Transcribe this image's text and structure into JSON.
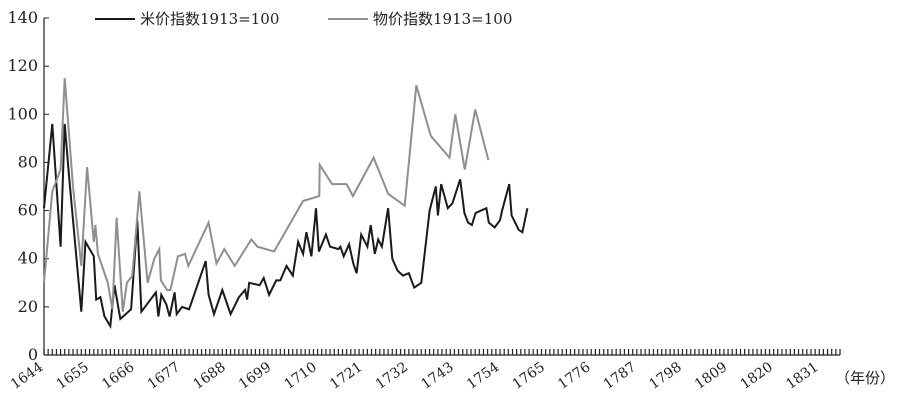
{
  "chart_data": {
    "type": "line",
    "xlabel": "（年份）",
    "ylim": [
      0,
      140
    ],
    "yticks": [
      0,
      20,
      40,
      60,
      80,
      100,
      120,
      140
    ],
    "xlim": [
      1644,
      1836
    ],
    "xticks": [
      1644,
      1655,
      1666,
      1677,
      1688,
      1699,
      1710,
      1721,
      1732,
      1743,
      1754,
      1765,
      1776,
      1787,
      1798,
      1809,
      1820,
      1831
    ],
    "legend_position": "top-left",
    "grid": false,
    "series": [
      {
        "name": "米价指数1913=100",
        "color": "#1a1a1a",
        "points": [
          [
            1644,
            61
          ],
          [
            1646,
            96
          ],
          [
            1648,
            45
          ],
          [
            1649,
            96
          ],
          [
            1650,
            75
          ],
          [
            1653,
            18
          ],
          [
            1654,
            47
          ],
          [
            1656,
            41
          ],
          [
            1656.6,
            23
          ],
          [
            1657.6,
            24
          ],
          [
            1658.6,
            16
          ],
          [
            1660,
            12
          ],
          [
            1661,
            29
          ],
          [
            1662.4,
            15
          ],
          [
            1665,
            19
          ],
          [
            1666.5,
            56
          ],
          [
            1667.5,
            18
          ],
          [
            1671,
            26
          ],
          [
            1671.6,
            16
          ],
          [
            1672.3,
            25
          ],
          [
            1673.5,
            21
          ],
          [
            1674.3,
            16
          ],
          [
            1675.5,
            26
          ],
          [
            1676,
            17
          ],
          [
            1677.3,
            20
          ],
          [
            1679,
            19
          ],
          [
            1683,
            39
          ],
          [
            1683.7,
            25
          ],
          [
            1685,
            17
          ],
          [
            1687,
            27
          ],
          [
            1689,
            17
          ],
          [
            1691,
            24
          ],
          [
            1692.5,
            27
          ],
          [
            1693,
            23
          ],
          [
            1693.5,
            30
          ],
          [
            1696,
            29
          ],
          [
            1697,
            32
          ],
          [
            1698.3,
            25
          ],
          [
            1700,
            31
          ],
          [
            1701,
            31
          ],
          [
            1702.5,
            37
          ],
          [
            1704,
            33
          ],
          [
            1705.3,
            47
          ],
          [
            1706.5,
            42
          ],
          [
            1707.3,
            51
          ],
          [
            1708.5,
            41
          ],
          [
            1709.6,
            61
          ],
          [
            1710.3,
            43
          ],
          [
            1712,
            50
          ],
          [
            1713,
            45
          ],
          [
            1715,
            44
          ],
          [
            1715.5,
            45
          ],
          [
            1716.3,
            41
          ],
          [
            1717.6,
            46
          ],
          [
            1718.6,
            38
          ],
          [
            1719.4,
            34
          ],
          [
            1720.5,
            50
          ],
          [
            1722,
            45
          ],
          [
            1722.8,
            54
          ],
          [
            1723.8,
            42
          ],
          [
            1724.6,
            48
          ],
          [
            1725.5,
            45
          ],
          [
            1727,
            61
          ],
          [
            1728,
            40
          ],
          [
            1729.3,
            35
          ],
          [
            1730.6,
            33
          ],
          [
            1732,
            34
          ],
          [
            1733.3,
            28
          ],
          [
            1735,
            30
          ],
          [
            1737,
            60
          ],
          [
            1738.5,
            70
          ],
          [
            1739,
            58
          ],
          [
            1739.8,
            71
          ],
          [
            1741.4,
            61
          ],
          [
            1742.5,
            63
          ],
          [
            1744.4,
            73
          ],
          [
            1745.4,
            59
          ],
          [
            1746.3,
            55
          ],
          [
            1747.2,
            54
          ],
          [
            1748.1,
            59
          ],
          [
            1750.7,
            61
          ],
          [
            1751.3,
            55
          ],
          [
            1752.7,
            53
          ],
          [
            1754,
            56
          ],
          [
            1754.5,
            60
          ],
          [
            1756.2,
            71
          ],
          [
            1756.8,
            58
          ],
          [
            1758.5,
            52
          ],
          [
            1759.4,
            51
          ],
          [
            1760.6,
            61
          ]
        ]
      },
      {
        "name": "物价指数1913=100",
        "color": "#8f8f8f",
        "points": [
          [
            1644,
            30
          ],
          [
            1646,
            68
          ],
          [
            1648,
            77
          ],
          [
            1649,
            115
          ],
          [
            1651,
            70
          ],
          [
            1653,
            37
          ],
          [
            1654.4,
            78
          ],
          [
            1656,
            47
          ],
          [
            1656.4,
            54
          ],
          [
            1657,
            42
          ],
          [
            1659.4,
            30
          ],
          [
            1660.5,
            19
          ],
          [
            1661.5,
            57
          ],
          [
            1663,
            18
          ],
          [
            1664,
            30
          ],
          [
            1665.3,
            33
          ],
          [
            1667,
            68
          ],
          [
            1669,
            30
          ],
          [
            1670.6,
            40
          ],
          [
            1671.8,
            44
          ],
          [
            1672.2,
            31
          ],
          [
            1673.7,
            27
          ],
          [
            1674.5,
            27
          ],
          [
            1676.3,
            41
          ],
          [
            1678,
            42
          ],
          [
            1678.8,
            37
          ],
          [
            1683.7,
            55
          ],
          [
            1685.6,
            38
          ],
          [
            1687.5,
            44
          ],
          [
            1690,
            37
          ],
          [
            1694,
            48
          ],
          [
            1695.5,
            45
          ],
          [
            1699.5,
            43
          ],
          [
            1706.5,
            64
          ],
          [
            1710.4,
            66
          ],
          [
            1710.5,
            79
          ],
          [
            1713.5,
            71
          ],
          [
            1717,
            71
          ],
          [
            1718.5,
            66
          ],
          [
            1723.5,
            82
          ],
          [
            1727,
            67
          ],
          [
            1731,
            62
          ],
          [
            1733.8,
            112
          ],
          [
            1737.3,
            91
          ],
          [
            1741.8,
            82
          ],
          [
            1743.2,
            100
          ],
          [
            1745.5,
            77
          ],
          [
            1748,
            102
          ],
          [
            1751.2,
            81
          ]
        ]
      }
    ]
  }
}
